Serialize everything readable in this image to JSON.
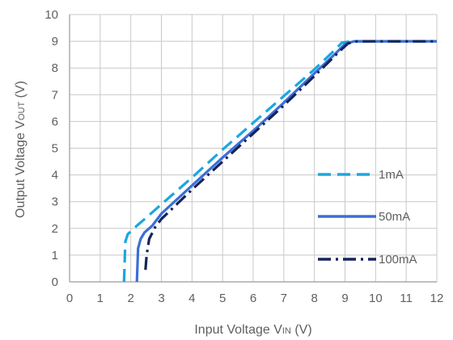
{
  "chart_data": {
    "type": "line",
    "xlabel": "Input Voltage VIN (V)",
    "ylabel": "Output Voltage VOUT (V)",
    "xlim": [
      0,
      12
    ],
    "ylim": [
      0,
      10
    ],
    "x_ticks": [
      "0",
      "1",
      "2",
      "3",
      "4",
      "5",
      "6",
      "7",
      "8",
      "9",
      "10",
      "11",
      "12"
    ],
    "y_ticks": [
      "0",
      "1",
      "2",
      "3",
      "4",
      "5",
      "6",
      "7",
      "8",
      "9",
      "10"
    ],
    "grid": true,
    "legend_position": "bottom-right",
    "series": [
      {
        "name": "1mA",
        "color": "#1aa7e0",
        "dash": "dash",
        "x": [
          1.78,
          1.82,
          1.9,
          2.2,
          2.6,
          3.0,
          4.0,
          5.0,
          6.0,
          7.0,
          8.0,
          8.6,
          8.9,
          9.2,
          9.6,
          10.0,
          10.5,
          11.0,
          11.5,
          12.0
        ],
        "y": [
          0.0,
          1.5,
          1.78,
          2.1,
          2.5,
          2.9,
          3.9,
          4.95,
          5.95,
          6.95,
          7.95,
          8.6,
          8.95,
          9.0,
          9.0,
          9.0,
          9.0,
          9.0,
          9.0,
          9.0
        ]
      },
      {
        "name": "50mA",
        "color": "#3b6fd6",
        "dash": "solid",
        "x": [
          2.2,
          2.24,
          2.32,
          2.45,
          2.7,
          3.0,
          4.0,
          5.0,
          6.0,
          7.0,
          8.0,
          8.7,
          9.0,
          9.3,
          9.6,
          10.0,
          11.0,
          12.0
        ],
        "y": [
          0.0,
          1.25,
          1.6,
          1.85,
          2.1,
          2.55,
          3.6,
          4.65,
          5.65,
          6.7,
          7.8,
          8.55,
          8.9,
          9.0,
          9.0,
          9.0,
          9.0,
          9.0
        ]
      },
      {
        "name": "100mA",
        "color": "#15245a",
        "dash": "dashdot",
        "x": [
          2.48,
          2.52,
          2.6,
          2.8,
          3.0,
          3.5,
          4.0,
          5.0,
          6.0,
          7.0,
          8.0,
          8.8,
          9.1,
          9.4,
          9.8,
          10.2,
          11.0,
          12.0
        ],
        "y": [
          0.45,
          1.0,
          1.6,
          2.05,
          2.35,
          2.9,
          3.45,
          4.5,
          5.55,
          6.6,
          7.7,
          8.6,
          8.92,
          9.0,
          9.0,
          9.0,
          9.0,
          9.0
        ]
      }
    ]
  }
}
